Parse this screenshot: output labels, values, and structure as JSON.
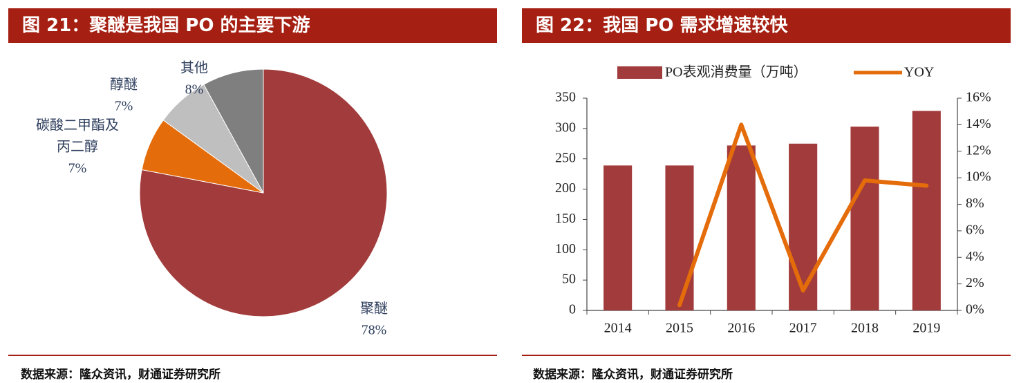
{
  "figures": [
    {
      "title": "图 21：聚醚是我国 PO 的主要下游",
      "source": "数据来源：隆众资讯，财通证券研究所"
    },
    {
      "title": "图 22：我国 PO 需求增速较快",
      "source": "数据来源：隆众资讯，财通证券研究所"
    }
  ],
  "chart_data": [
    {
      "type": "pie",
      "title": "图 21：聚醚是我国 PO 的主要下游",
      "start": "12 o'clock, clockwise",
      "slices": [
        {
          "label": "聚醚",
          "value": 78,
          "value_label": "78%",
          "color": "#a23b3b"
        },
        {
          "label": "碳酸二甲酯及丙二醇",
          "label_lines": [
            "碳酸二甲酯及",
            "丙二醇"
          ],
          "value": 7,
          "value_label": "7%",
          "color": "#e46c0a"
        },
        {
          "label": "醇醚",
          "value": 7,
          "value_label": "7%",
          "color": "#bfbfbf"
        },
        {
          "label": "其他",
          "value": 8,
          "value_label": "8%",
          "color": "#7f7f7f"
        }
      ]
    },
    {
      "type": "bar+line",
      "title": "图 22：我国 PO 需求增速较快",
      "categories": [
        "2014",
        "2015",
        "2016",
        "2017",
        "2018",
        "2019"
      ],
      "series": [
        {
          "name": "PO表观消费量（万吨）",
          "type": "bar",
          "axis": "left",
          "color": "#a23b3b",
          "values": [
            239,
            239,
            272,
            275,
            303,
            329
          ]
        },
        {
          "name": "YOY",
          "type": "line",
          "axis": "right",
          "color": "#e46c0a",
          "values": [
            null,
            0.4,
            14.0,
            1.5,
            9.8,
            9.4
          ]
        }
      ],
      "y_left": {
        "min": 0,
        "max": 350,
        "step": 50,
        "ticks": [
          "0",
          "50",
          "100",
          "150",
          "200",
          "250",
          "300",
          "350"
        ]
      },
      "y_right": {
        "min": 0,
        "max": 16,
        "step": 2,
        "ticks": [
          "0%",
          "2%",
          "4%",
          "6%",
          "8%",
          "10%",
          "12%",
          "14%",
          "16%"
        ]
      },
      "legend": "top"
    }
  ]
}
